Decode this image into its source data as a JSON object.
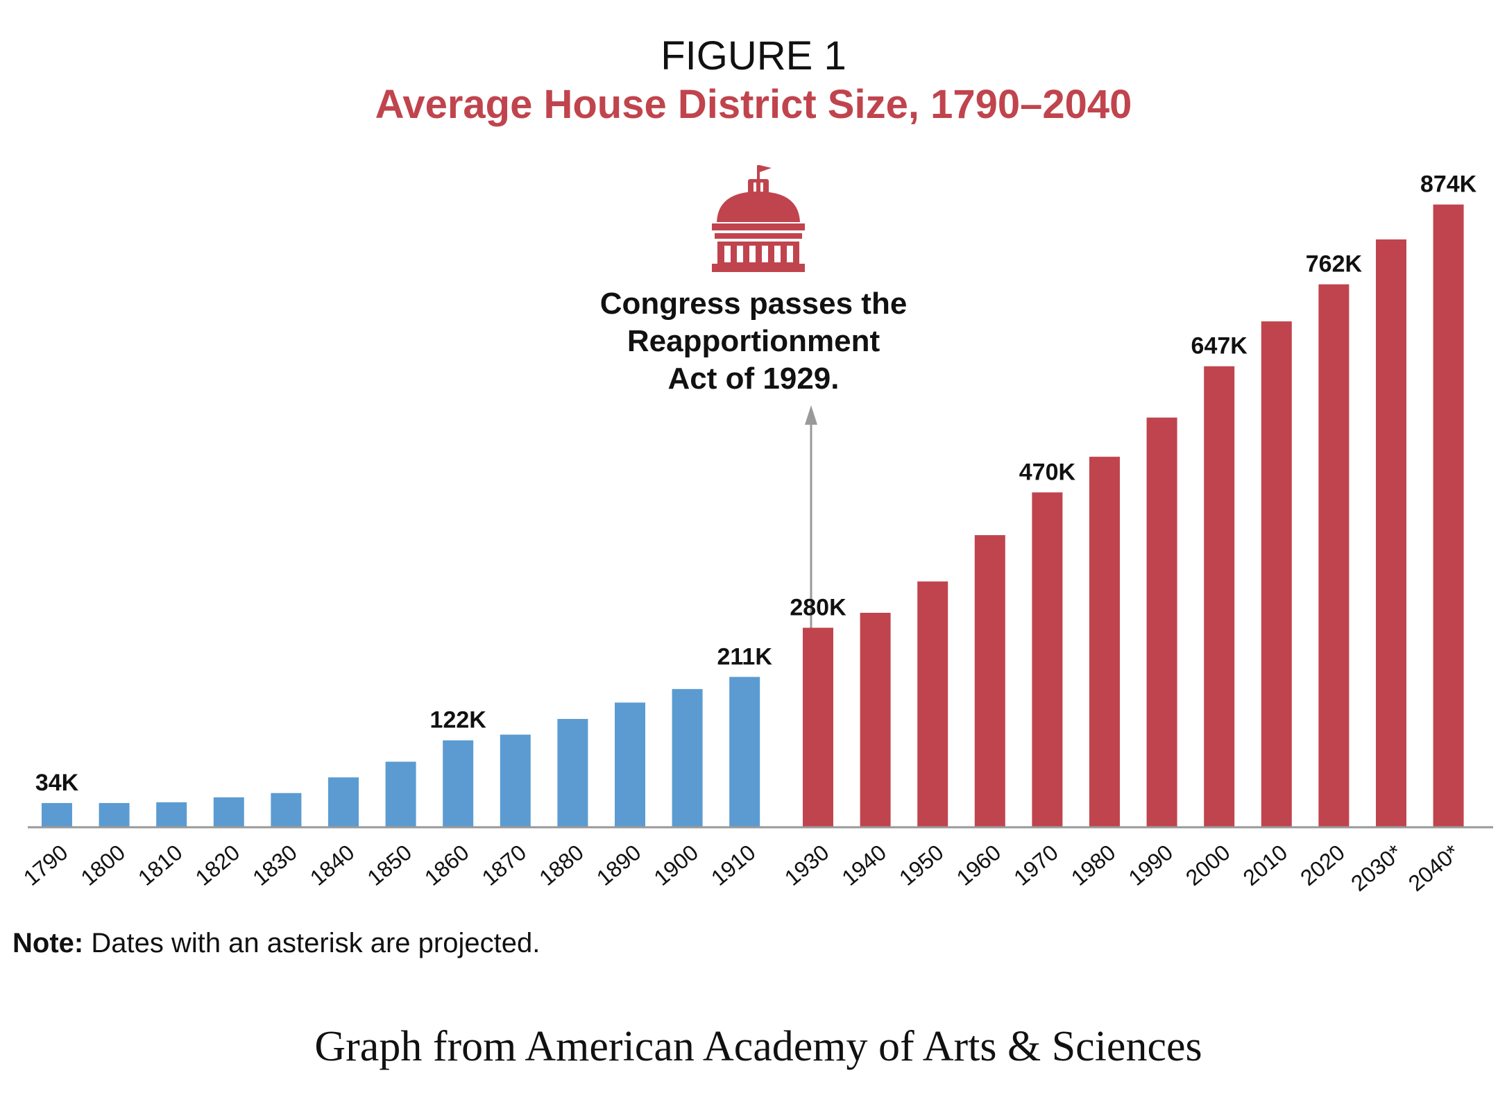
{
  "figure_label": "FIGURE 1",
  "note_prefix": "Note:",
  "note_text": " Dates with an asterisk are projected.",
  "caption": "Graph from American Academy of Arts & Sciences",
  "annotation": {
    "lines": [
      "Congress passes the",
      "Reapportionment",
      "Act of 1929."
    ],
    "icon": "capitol-dome-icon"
  },
  "colors": {
    "pre_1929": "#5b9bd1",
    "post_1929": "#c0444d",
    "title_accent": "#c0444d",
    "text": "#111111",
    "axis": "#999999"
  },
  "chart_data": {
    "type": "bar",
    "title": "Average House District Size, 1790–2040",
    "xlabel": "",
    "ylabel": "",
    "ylim": [
      0,
      900000
    ],
    "grid": false,
    "categories": [
      "1790",
      "1800",
      "1810",
      "1820",
      "1830",
      "1840",
      "1850",
      "1860",
      "1870",
      "1880",
      "1890",
      "1900",
      "1910",
      "1930",
      "1940",
      "1950",
      "1960",
      "1970",
      "1980",
      "1990",
      "2000",
      "2010",
      "2020",
      "2030*",
      "2040*"
    ],
    "values": [
      34000,
      34000,
      35000,
      42000,
      48000,
      70000,
      92000,
      122000,
      130000,
      152000,
      175000,
      194000,
      211000,
      280000,
      301000,
      345000,
      410000,
      470000,
      520000,
      575000,
      647000,
      710000,
      762000,
      825000,
      874000
    ],
    "data_labels": [
      "34K",
      "",
      "",
      "",
      "",
      "",
      "",
      "122K",
      "",
      "",
      "",
      "",
      "211K",
      "280K",
      "",
      "",
      "",
      "470K",
      "",
      "",
      "647K",
      "",
      "762K",
      "",
      "874K"
    ],
    "series_groups": [
      {
        "from_index": 0,
        "to_index": 12,
        "color_key": "pre_1929"
      },
      {
        "from_index": 13,
        "to_index": 24,
        "color_key": "post_1929"
      }
    ]
  }
}
